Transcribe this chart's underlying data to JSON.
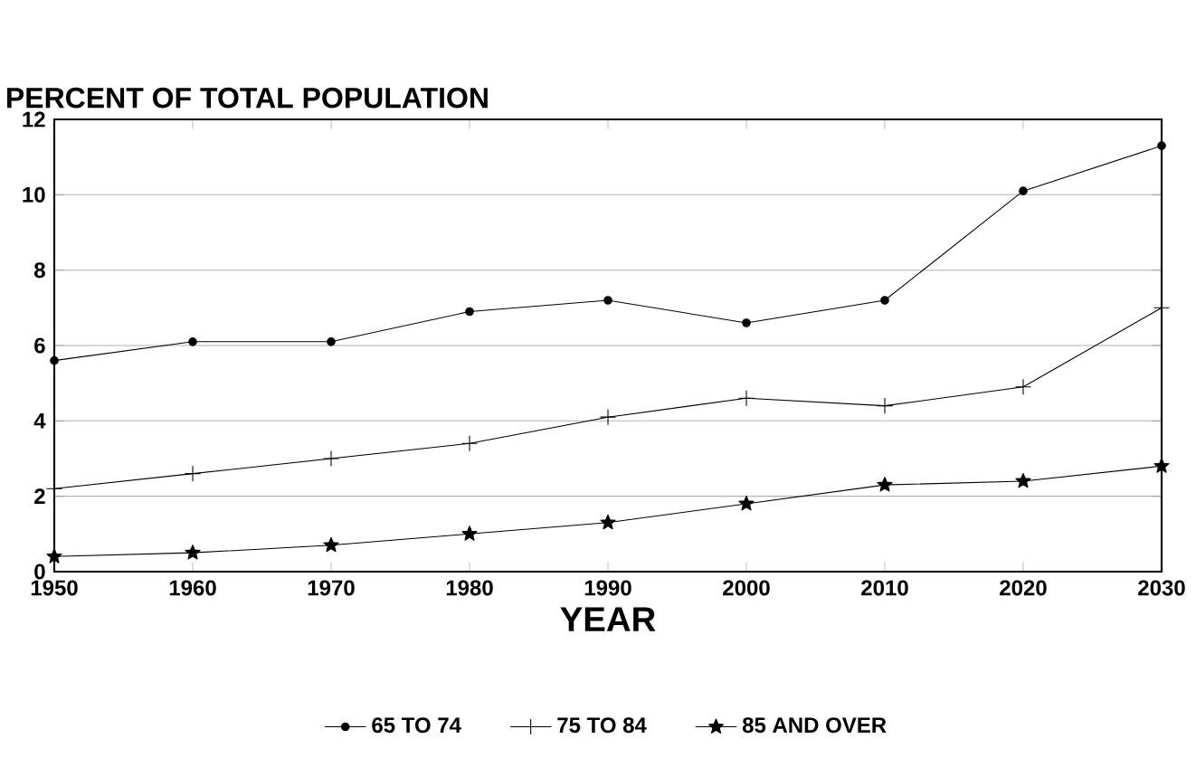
{
  "chart_data": {
    "type": "line",
    "title": "PERCENT OF TOTAL POPULATION",
    "xlabel": "YEAR",
    "x": [
      1950,
      1960,
      1970,
      1980,
      1990,
      2000,
      2010,
      2020,
      2030
    ],
    "series": [
      {
        "name": "65 TO 74",
        "color": "#000000",
        "marker": "circle",
        "values": [
          5.6,
          6.1,
          6.1,
          6.9,
          7.2,
          6.6,
          7.2,
          10.1,
          11.3
        ]
      },
      {
        "name": "75 TO 84",
        "color": "#000000",
        "marker": "cross",
        "values": [
          2.2,
          2.6,
          3.0,
          3.4,
          4.1,
          4.6,
          4.4,
          4.9,
          7.0
        ]
      },
      {
        "name": "85 AND OVER",
        "color": "#000000",
        "marker": "star",
        "values": [
          0.4,
          0.5,
          0.7,
          1.0,
          1.3,
          1.8,
          2.3,
          2.4,
          2.8
        ]
      }
    ],
    "xlim": [
      1950,
      2030
    ],
    "xticks": [
      1950,
      1960,
      1970,
      1980,
      1990,
      2000,
      2010,
      2020,
      2030
    ],
    "ylim": [
      0,
      12
    ],
    "yticks": [
      0,
      2,
      4,
      6,
      8,
      10,
      12
    ],
    "grid": "y",
    "legend": "bottom",
    "line_style": "solid"
  }
}
